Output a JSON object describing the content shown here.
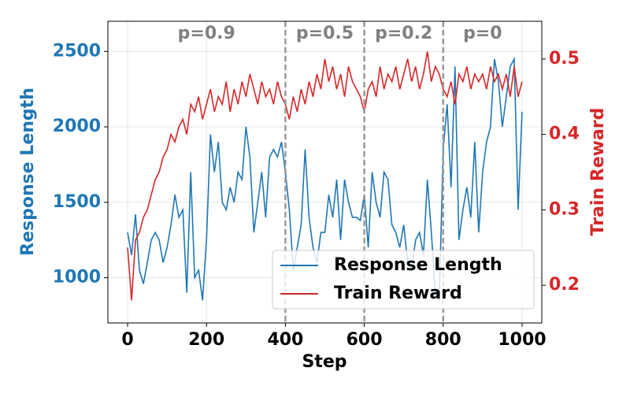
{
  "chart_data": {
    "type": "line",
    "xlabel": "Step",
    "ylabel": "Response Length",
    "y2label": "Train Reward",
    "x": [
      0,
      10,
      20,
      30,
      40,
      50,
      60,
      70,
      80,
      90,
      100,
      110,
      120,
      130,
      140,
      150,
      160,
      170,
      180,
      190,
      200,
      210,
      220,
      230,
      240,
      250,
      260,
      270,
      280,
      290,
      300,
      310,
      320,
      330,
      340,
      350,
      360,
      370,
      380,
      390,
      400,
      410,
      420,
      430,
      440,
      450,
      460,
      470,
      480,
      490,
      500,
      510,
      520,
      530,
      540,
      550,
      560,
      570,
      580,
      590,
      600,
      610,
      620,
      630,
      640,
      650,
      660,
      670,
      680,
      690,
      700,
      710,
      720,
      730,
      740,
      750,
      760,
      770,
      780,
      790,
      800,
      810,
      820,
      830,
      840,
      850,
      860,
      870,
      880,
      890,
      900,
      910,
      920,
      930,
      940,
      950,
      960,
      970,
      980,
      990,
      1000
    ],
    "series": [
      {
        "name": "Response Length",
        "color": "#1f77b4",
        "axis": "y",
        "values": [
          1300,
          1150,
          1420,
          1050,
          960,
          1100,
          1250,
          1300,
          1250,
          1100,
          1200,
          1350,
          1550,
          1400,
          1450,
          900,
          1700,
          1000,
          1050,
          850,
          1250,
          1950,
          1700,
          1900,
          1500,
          1450,
          1600,
          1500,
          1700,
          1650,
          2000,
          1800,
          1300,
          1500,
          1700,
          1400,
          1800,
          1850,
          1800,
          1900,
          1700,
          1450,
          1050,
          1200,
          1350,
          1850,
          1400,
          1200,
          1100,
          1300,
          1300,
          1550,
          1400,
          1650,
          1250,
          1650,
          1500,
          1400,
          1400,
          1380,
          1550,
          1200,
          1700,
          1500,
          1400,
          1700,
          1650,
          1350,
          1300,
          1200,
          1350,
          1100,
          1050,
          1250,
          1300,
          1150,
          1650,
          1300,
          900,
          850,
          1850,
          2150,
          1600,
          2400,
          1250,
          1450,
          1600,
          1400,
          1900,
          1300,
          1700,
          1900,
          2000,
          2450,
          2300,
          2000,
          2200,
          2400,
          2450,
          1450,
          2100
        ]
      },
      {
        "name": "Train Reward",
        "color": "#d62728",
        "axis": "y2",
        "values": [
          0.25,
          0.18,
          0.26,
          0.27,
          0.29,
          0.3,
          0.32,
          0.34,
          0.35,
          0.37,
          0.38,
          0.4,
          0.39,
          0.41,
          0.42,
          0.4,
          0.44,
          0.43,
          0.45,
          0.42,
          0.44,
          0.46,
          0.43,
          0.45,
          0.44,
          0.47,
          0.43,
          0.46,
          0.44,
          0.47,
          0.45,
          0.48,
          0.46,
          0.44,
          0.47,
          0.45,
          0.46,
          0.44,
          0.47,
          0.45,
          0.44,
          0.42,
          0.45,
          0.43,
          0.46,
          0.44,
          0.47,
          0.45,
          0.48,
          0.46,
          0.5,
          0.47,
          0.49,
          0.46,
          0.48,
          0.45,
          0.49,
          0.47,
          0.46,
          0.45,
          0.43,
          0.46,
          0.47,
          0.45,
          0.49,
          0.46,
          0.48,
          0.47,
          0.49,
          0.46,
          0.48,
          0.5,
          0.47,
          0.49,
          0.46,
          0.48,
          0.51,
          0.47,
          0.49,
          0.48,
          0.46,
          0.45,
          0.47,
          0.44,
          0.48,
          0.47,
          0.49,
          0.46,
          0.48,
          0.47,
          0.48,
          0.46,
          0.49,
          0.47,
          0.48,
          0.46,
          0.48,
          0.45,
          0.49,
          0.45,
          0.47
        ]
      }
    ],
    "xlim": [
      -50,
      1050
    ],
    "xticks": [
      0,
      200,
      400,
      600,
      800,
      1000
    ],
    "ylim": [
      700,
      2700
    ],
    "yticks": [
      1000,
      1500,
      2000,
      2500
    ],
    "y2lim": [
      0.15,
      0.55
    ],
    "y2ticks": [
      0.2,
      0.3,
      0.4,
      0.5
    ],
    "vlines": [
      400,
      600,
      800
    ],
    "annotations": [
      {
        "text": "p=0.9",
        "x": 200
      },
      {
        "text": "p=0.5",
        "x": 500
      },
      {
        "text": "p=0.2",
        "x": 700
      },
      {
        "text": "p=0",
        "x": 900
      }
    ],
    "grid": true,
    "legend": "lower right"
  }
}
